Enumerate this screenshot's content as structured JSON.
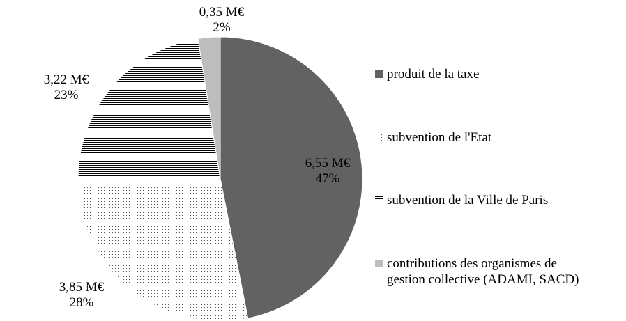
{
  "chart_data": {
    "type": "pie",
    "start_angle": "top",
    "direction": "clockwise",
    "legend_position": "right",
    "unit": "M€",
    "slices": [
      {
        "name": "produit de la taxe",
        "value": 6.55,
        "value_label": "6,55 M€",
        "percent_label": "47%",
        "fill": "#626262",
        "pattern": "solid"
      },
      {
        "name": "subvention de l'Etat",
        "value": 3.85,
        "value_label": "3,85 M€",
        "percent_label": "28%",
        "fill": "#ffffff",
        "pattern": "dots"
      },
      {
        "name": "subvention de la Ville de Paris",
        "value": 3.22,
        "value_label": "3,22 M€",
        "percent_label": "23%",
        "fill": "#ffffff",
        "pattern": "horizontal-lines"
      },
      {
        "name": "contributions des organismes de gestion collective (ADAMI, SACD)",
        "value": 0.35,
        "value_label": "0,35 M€",
        "percent_label": "2%",
        "fill": "#bdbdbd",
        "pattern": "solid"
      }
    ]
  },
  "legend": {
    "items": [
      {
        "line1": "produit de la taxe",
        "line2": ""
      },
      {
        "line1": "subvention de l'Etat",
        "line2": ""
      },
      {
        "line1": "subvention de la Ville de Paris",
        "line2": ""
      },
      {
        "line1": "contributions des organismes de",
        "line2": "gestion collective (ADAMI, SACD)"
      }
    ]
  }
}
